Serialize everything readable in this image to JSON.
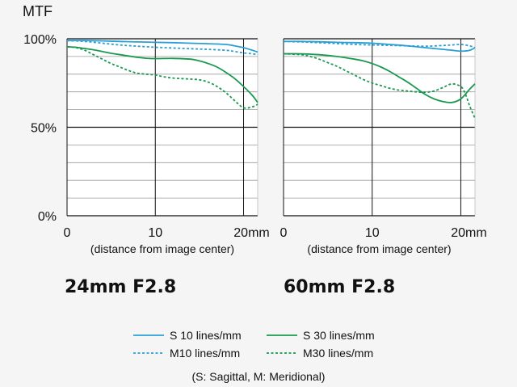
{
  "chart_data": [
    {
      "type": "line",
      "title": "24mm F2.8",
      "ylabel": "MTF",
      "xlabel": "(distance from image center)",
      "xlim": [
        0,
        21.6
      ],
      "ylim": [
        0,
        100
      ],
      "x_ticks": [
        "0",
        "10",
        "20mm"
      ],
      "y_ticks": [
        "100%",
        "50%",
        "0%"
      ],
      "series": [
        {
          "name": "S 10 lines/mm",
          "style": "solid",
          "color": "#2a9fd6",
          "x": [
            0,
            2,
            4,
            6,
            8,
            10,
            12,
            14,
            16,
            18,
            19,
            20,
            21,
            21.6
          ],
          "y": [
            99,
            99,
            98.8,
            98.5,
            98.2,
            98,
            97.8,
            97.5,
            97.2,
            96.8,
            96,
            95,
            93.5,
            92.5
          ]
        },
        {
          "name": "M10 lines/mm",
          "style": "dashed",
          "color": "#2a9fd6",
          "x": [
            0,
            2,
            4,
            6,
            8,
            10,
            12,
            14,
            16,
            18,
            19,
            20,
            21,
            21.6
          ],
          "y": [
            99,
            98.5,
            97.5,
            96.5,
            95.8,
            95.2,
            94.8,
            94.4,
            94,
            93.5,
            92.8,
            92,
            91.5,
            91
          ]
        },
        {
          "name": "S 30 lines/mm",
          "style": "solid",
          "color": "#1a9950",
          "x": [
            0,
            1,
            2,
            3,
            4,
            5,
            6,
            8,
            9,
            10,
            12,
            14,
            15,
            16,
            17,
            18,
            19,
            20,
            21,
            21.6
          ],
          "y": [
            95.5,
            95.2,
            94.5,
            93.8,
            92.8,
            91.8,
            91,
            89.5,
            89,
            88.8,
            88.9,
            88.5,
            87.5,
            86,
            84,
            81,
            77.5,
            73,
            68,
            64
          ]
        },
        {
          "name": "M30 lines/mm",
          "style": "dashed",
          "color": "#1a9950",
          "x": [
            0,
            1,
            2,
            3,
            4,
            5,
            6,
            7,
            8,
            9,
            10,
            11,
            12,
            13,
            14,
            15,
            16,
            17,
            18,
            19,
            20,
            21,
            21.6
          ],
          "y": [
            95.5,
            95,
            93.5,
            91,
            88.5,
            86,
            84,
            82,
            80.5,
            80,
            79.5,
            78.5,
            77.8,
            77.5,
            77.2,
            76.8,
            75.5,
            73,
            69.5,
            65,
            61,
            61.5,
            63
          ]
        }
      ]
    },
    {
      "type": "line",
      "title": "60mm F2.8",
      "xlabel": "(distance from image center)",
      "xlim": [
        0,
        21.6
      ],
      "ylim": [
        0,
        100
      ],
      "x_ticks": [
        "0",
        "10",
        "20mm"
      ],
      "y_ticks": [],
      "series": [
        {
          "name": "S 10 lines/mm",
          "style": "solid",
          "color": "#2a9fd6",
          "x": [
            0,
            2,
            4,
            6,
            8,
            10,
            12,
            14,
            16,
            18,
            19,
            20,
            21,
            21.6
          ],
          "y": [
            98.5,
            98.5,
            98.3,
            98,
            97.8,
            97.5,
            96.8,
            96,
            95,
            94,
            93.5,
            93,
            93.5,
            95
          ]
        },
        {
          "name": "M10 lines/mm",
          "style": "dashed",
          "color": "#2a9fd6",
          "x": [
            0,
            2,
            4,
            6,
            8,
            10,
            12,
            14,
            16,
            18,
            19,
            20,
            21,
            21.6
          ],
          "y": [
            98.5,
            98.2,
            97.8,
            97.3,
            96.8,
            96.5,
            96.3,
            96,
            95.8,
            96.2,
            96.5,
            96.8,
            96,
            95
          ]
        },
        {
          "name": "S 30 lines/mm",
          "style": "solid",
          "color": "#1a9950",
          "x": [
            0,
            2,
            4,
            6,
            8,
            9,
            10,
            11,
            12,
            13,
            14,
            15,
            16,
            17,
            18,
            19,
            20,
            21,
            21.6
          ],
          "y": [
            91.5,
            91.5,
            91,
            90,
            88.5,
            87.5,
            86,
            84,
            81.5,
            78.5,
            75.5,
            72,
            68.5,
            66,
            64.5,
            64,
            66,
            71.5,
            74.5
          ]
        },
        {
          "name": "M30 lines/mm",
          "style": "dashed",
          "color": "#1a9950",
          "x": [
            0,
            2,
            3,
            4,
            5,
            6,
            7,
            8,
            9,
            10,
            11,
            12,
            13,
            14,
            15,
            16,
            17,
            18,
            19,
            20,
            20.5,
            21,
            21.6
          ],
          "y": [
            91.5,
            91,
            90,
            88.5,
            86.5,
            84.5,
            82,
            79.5,
            77,
            75,
            73.5,
            72,
            71,
            70.5,
            70,
            69.8,
            70.5,
            72.5,
            74.5,
            73,
            69,
            62,
            55
          ]
        }
      ]
    }
  ],
  "legend": {
    "items": [
      {
        "label": "S 10 lines/mm",
        "color": "#2a9fd6",
        "style": "solid"
      },
      {
        "label": "S 30 lines/mm",
        "color": "#1a9950",
        "style": "solid"
      },
      {
        "label": "M10 lines/mm",
        "color": "#2a9fd6",
        "style": "dashed"
      },
      {
        "label": "M30 lines/mm",
        "color": "#1a9950",
        "style": "dashed"
      }
    ],
    "note": "(S: Sagittal, M: Meridional)"
  }
}
